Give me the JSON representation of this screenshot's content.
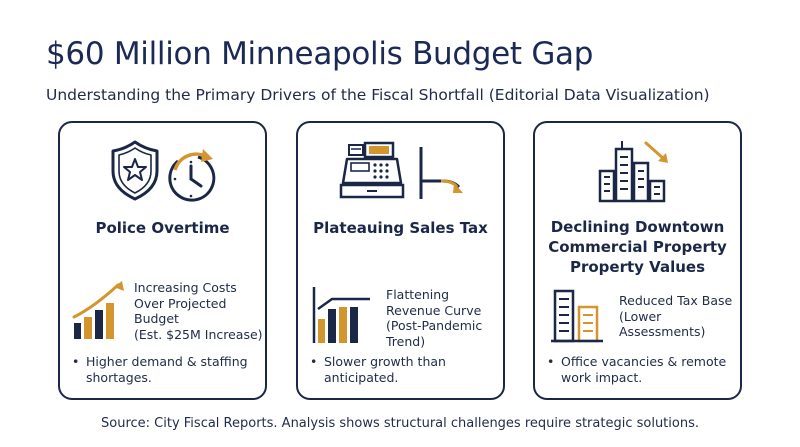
{
  "header": {
    "title": "$60 Million Minneapolis Budget Gap",
    "subtitle": "Understanding the Primary Drivers of the Fiscal Shortfall (Editorial Data Visualization)"
  },
  "cards": [
    {
      "title_lines": [
        "Police Overtime"
      ],
      "detail_lines": [
        "Increasing Costs",
        "Over Projected",
        "Budget",
        "(Est. $25M Increase)"
      ],
      "bullet_lines": [
        "Higher demand & staffing",
        "shortages."
      ],
      "icons": [
        "police-badge-icon",
        "clock-icon"
      ]
    },
    {
      "title_lines": [
        "Plateauing Sales Tax"
      ],
      "detail_lines": [
        "Flattening",
        "Revenue Curve",
        "(Post-Pandemic",
        "Trend)"
      ],
      "bullet_lines": [
        "Slower growth than",
        "anticipated."
      ],
      "icons": [
        "cash-register-icon",
        "declining-line-icon"
      ]
    },
    {
      "title_lines": [
        "Declining Downtown",
        "Commercial Property",
        "Property Values"
      ],
      "detail_lines": [
        "Reduced Tax Base",
        "(Lower",
        "Assessments)"
      ],
      "bullet_lines": [
        "Office vacancies & remote",
        "work impact."
      ],
      "icons": [
        "city-skyline-icon",
        "down-arrow-icon"
      ]
    }
  ],
  "footer": {
    "source": "Source: City Fiscal Reports. Analysis shows structural challenges require strategic solutions."
  },
  "colors": {
    "navy": "#1b2747",
    "gold": "#d3962f",
    "gold_light": "#e6b35a"
  }
}
